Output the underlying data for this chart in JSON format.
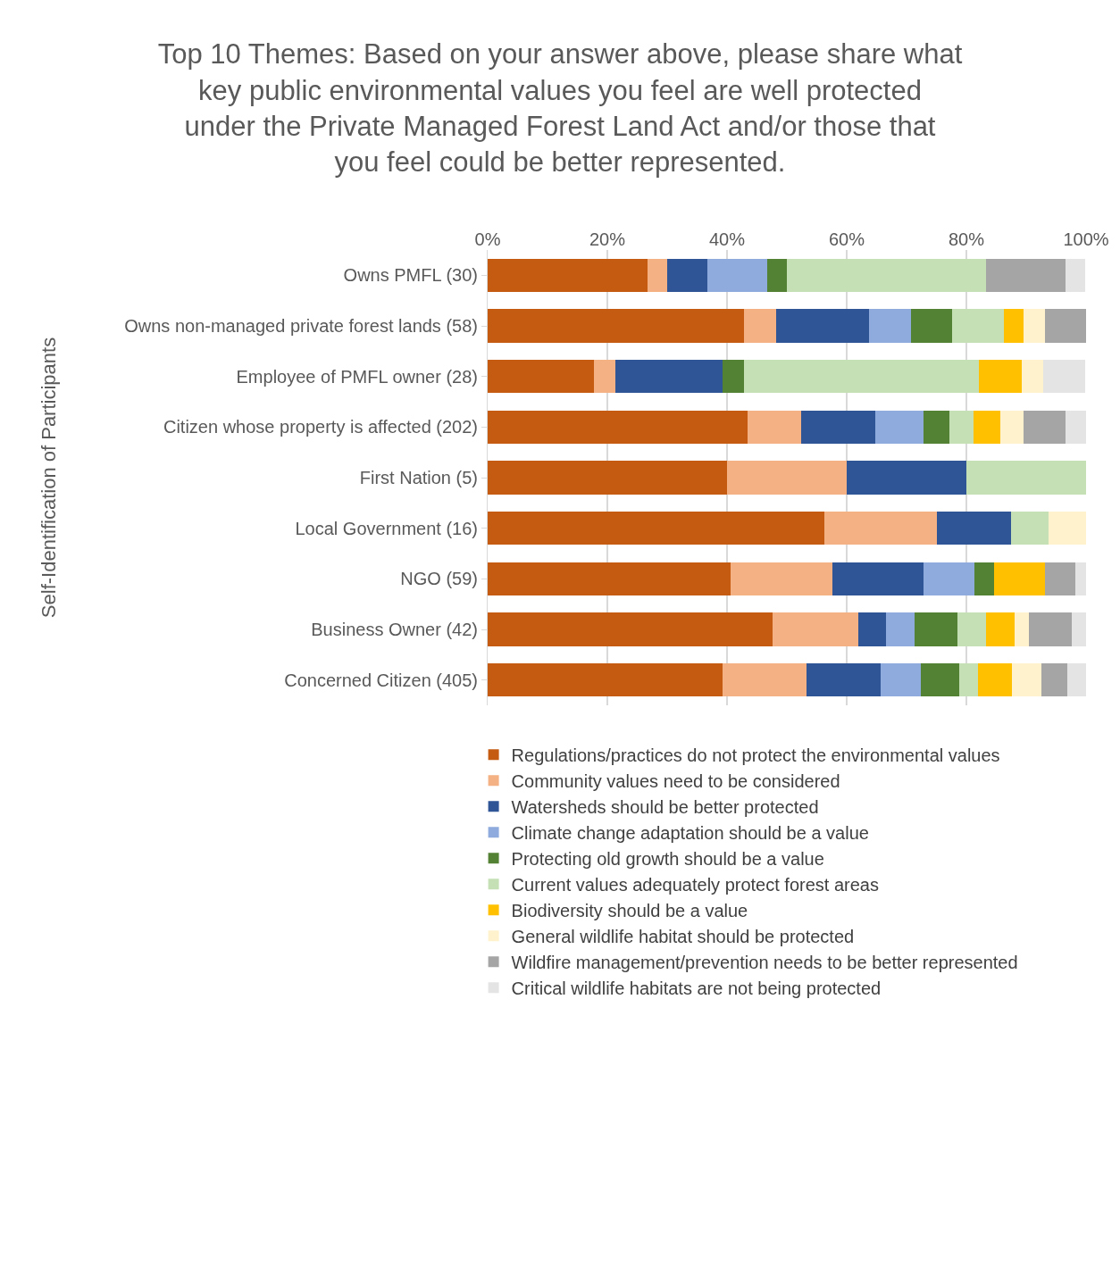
{
  "chart_data": {
    "type": "bar",
    "orientation": "horizontal",
    "stacked": true,
    "title": "Top 10 Themes: Based on your answer above, please share what\nkey public environmental values you feel are well protected\nunder the Private Managed Forest Land Act and/or those that\nyou feel could be better represented.",
    "ylabel": "Self-Identification of Participants",
    "categories": [
      "Owns PMFL (30)",
      "Owns non-managed private forest lands (58)",
      "Employee of PMFL owner (28)",
      "Citizen whose property is affected (202)",
      "First Nation (5)",
      "Local Government (16)",
      "NGO (59)",
      "Business Owner (42)",
      "Concerned Citizen (405)"
    ],
    "series": [
      {
        "name": "Regulations/practices do not protect the environmental values",
        "color": "#c55a11",
        "values": [
          26.7,
          42.9,
          17.8,
          43.5,
          40,
          56.2,
          40.6,
          47.6,
          39.2
        ]
      },
      {
        "name": "Community values need to be considered",
        "color": "#f4b183",
        "values": [
          3.3,
          5.3,
          3.6,
          8.9,
          20,
          18.8,
          17.0,
          14.3,
          14.1
        ]
      },
      {
        "name": "Watersheds should be better protected",
        "color": "#2f5597",
        "values": [
          6.7,
          15.5,
          17.8,
          12.4,
          20,
          12.5,
          15.3,
          4.7,
          12.3
        ]
      },
      {
        "name": "Climate change adaptation should be a value",
        "color": "#8faadc",
        "values": [
          10,
          7.0,
          null,
          8.0,
          null,
          null,
          8.4,
          4.8,
          6.8
        ]
      },
      {
        "name": "Protecting old growth should be a value",
        "color": "#548235",
        "values": [
          3.3,
          6.9,
          3.6,
          4.3,
          null,
          null,
          3.4,
          7.1,
          6.4
        ]
      },
      {
        "name": "Current values adequately protect forest areas",
        "color": "#c5e0b4",
        "values": [
          33.3,
          8.6,
          39.3,
          4.1,
          20,
          6.2,
          null,
          4.8,
          3.2
        ]
      },
      {
        "name": "Biodiversity should be a value",
        "color": "#ffc000",
        "values": [
          null,
          3.4,
          7.1,
          4.4,
          null,
          null,
          8.5,
          4.7,
          5.6
        ]
      },
      {
        "name": "General wildlife habitat should be protected",
        "color": "#fff2cc",
        "values": [
          null,
          3.5,
          3.6,
          4.0,
          null,
          6.3,
          null,
          2.5,
          5.0
        ]
      },
      {
        "name": "Wildfire management/prevention needs to be better represented",
        "color": "#a5a5a5",
        "values": [
          13.3,
          6.9,
          null,
          6.9,
          null,
          null,
          5.0,
          7.1,
          4.2
        ]
      },
      {
        "name": "Critical wildlife habitats are not being protected",
        "color": "#e4e4e4",
        "values": [
          3.3,
          null,
          7.1,
          3.5,
          null,
          null,
          1.8,
          2.4,
          3.2
        ]
      }
    ],
    "xlim": [
      0,
      100
    ],
    "xticks": [
      {
        "value": 0,
        "label": "0%"
      },
      {
        "value": 20,
        "label": "20%"
      },
      {
        "value": 40,
        "label": "40%"
      },
      {
        "value": 60,
        "label": "60%"
      },
      {
        "value": 80,
        "label": "80%"
      },
      {
        "value": 100,
        "label": "100%"
      }
    ],
    "grid": "x",
    "legend": "bottom"
  }
}
